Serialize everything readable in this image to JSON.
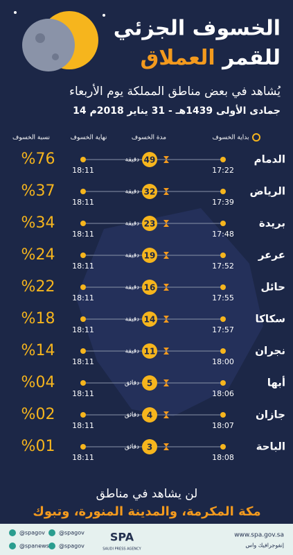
{
  "header": {
    "title_line1": "الخسوف الجزئي",
    "title_line2_a": "للقمر",
    "title_line2_b": "العملاق",
    "subtitle": "يُشاهد في بعض مناطق المملكة يوم الأربعاء",
    "date": "14 جمادى الأولى 1439هـ - 31 يناير 2018م"
  },
  "table": {
    "columns": [
      "بداية الخسوف",
      "مدة الخسوف",
      "نهاية الخسوف",
      "نسبة الخسوف"
    ],
    "rows": [
      [
        "الدمام",
        "17:22",
        "49",
        "دقيقة",
        "18:11",
        "%76"
      ],
      [
        "الرياض",
        "17:39",
        "32",
        "دقيقة",
        "18:11",
        "%37"
      ],
      [
        "بريدة",
        "17:48",
        "23",
        "دقيقة",
        "18:11",
        "%34"
      ],
      [
        "عرعر",
        "17:52",
        "19",
        "دقيقة",
        "18:11",
        "%24"
      ],
      [
        "حائل",
        "17:55",
        "16",
        "دقيقة",
        "18:11",
        "%22"
      ],
      [
        "سكاكا",
        "17:57",
        "14",
        "دقيقة",
        "18:11",
        "%18"
      ],
      [
        "نجران",
        "18:00",
        "11",
        "دقيقة",
        "18:11",
        "%14"
      ],
      [
        "أبها",
        "18:06",
        "5",
        "دقائق",
        "18:11",
        "%04"
      ],
      [
        "جازان",
        "18:07",
        "4",
        "دقائق",
        "18:11",
        "%02"
      ],
      [
        "الباحة",
        "18:08",
        "3",
        "دقائق",
        "18:11",
        "%01"
      ]
    ]
  },
  "footer": {
    "line1": "لن يشاهد في مناطق",
    "line2": "مكة المكرمة، والمدينة المنورة، وتبوك"
  },
  "bar": {
    "handles": [
      "@spagov",
      "@spanews",
      "@spagov",
      "@spagov"
    ],
    "logo": "SPA",
    "agency": "SAUDI PRESS AGENCY",
    "url": "www.spa.gov.sa",
    "label": "إنفوجرافيك واس"
  }
}
